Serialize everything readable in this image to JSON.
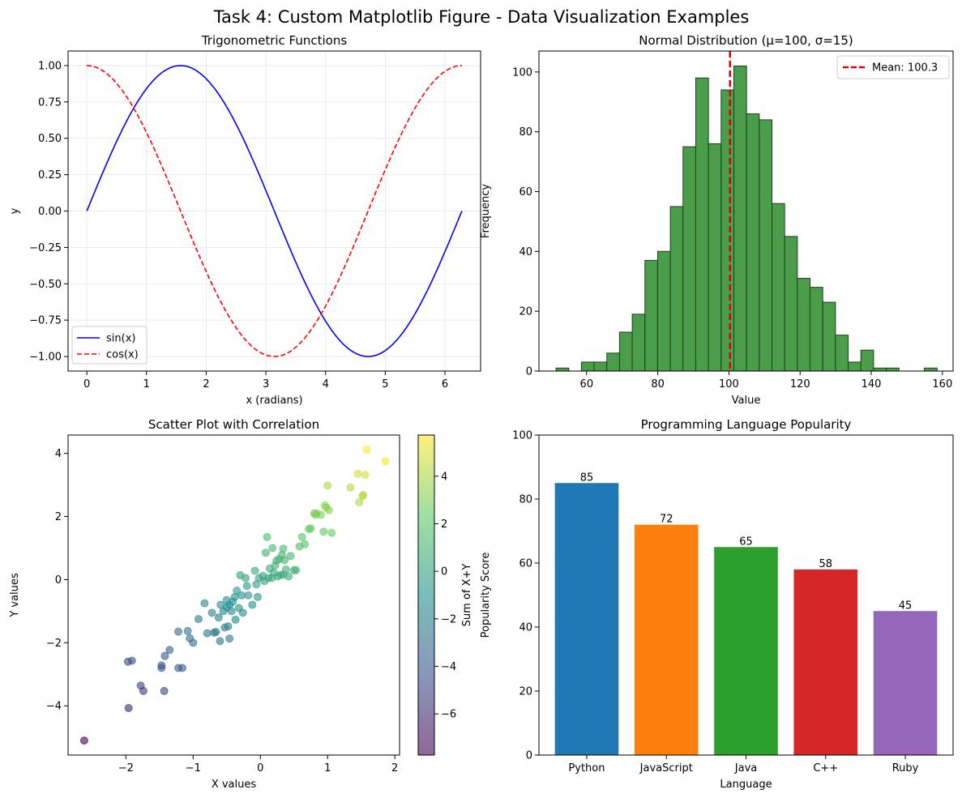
{
  "figure": {
    "suptitle": "Task 4: Custom Matplotlib Figure - Data Visualization Examples"
  },
  "chart_data": [
    {
      "id": "trig",
      "type": "line",
      "title": "Trigonometric Functions",
      "xlabel": "x (radians)",
      "ylabel": "y",
      "xlim": [
        -0.314,
        6.597
      ],
      "ylim": [
        -1.1,
        1.1
      ],
      "xticks": [
        0,
        1,
        2,
        3,
        4,
        5,
        6
      ],
      "yticks": [
        -1.0,
        -0.75,
        -0.5,
        -0.25,
        0.0,
        0.25,
        0.5,
        0.75,
        1.0
      ],
      "ytick_labels": [
        "−1.00",
        "−0.75",
        "−0.50",
        "−0.25",
        "0.00",
        "0.25",
        "0.50",
        "0.75",
        "1.00"
      ],
      "grid": true,
      "legend": "lower left",
      "x_range": [
        0,
        6.2832
      ],
      "series": [
        {
          "name": "sin(x)",
          "function": "sin",
          "color": "#0000ff",
          "style": "solid"
        },
        {
          "name": "cos(x)",
          "function": "cos",
          "color": "#ff0000",
          "style": "dashed"
        }
      ]
    },
    {
      "id": "hist",
      "type": "bar",
      "title": "Normal Distribution (μ=100, σ=15)",
      "xlabel": "Value",
      "ylabel": "Frequency",
      "xlim": [
        46.6,
        163.0
      ],
      "ylim": [
        0,
        107
      ],
      "xticks": [
        60,
        80,
        100,
        120,
        140,
        160
      ],
      "yticks": [
        0,
        20,
        40,
        60,
        80,
        100
      ],
      "bin_start": 51.4,
      "bin_width": 3.57,
      "counts": [
        1,
        0,
        3,
        3,
        6,
        13,
        19,
        37,
        40,
        55,
        75,
        98,
        76,
        94,
        102,
        86,
        84,
        56,
        45,
        31,
        28,
        23,
        12,
        3,
        7,
        1,
        1,
        0,
        0,
        1
      ],
      "color": "#4a9e4a",
      "edge_color": "#1f3d1f",
      "mean": 100.3,
      "mean_label": "Mean: 100.3",
      "mean_color": "#e00000",
      "legend": "upper right"
    },
    {
      "id": "scatter",
      "type": "scatter",
      "title": "Scatter Plot with Correlation",
      "xlabel": "X values",
      "ylabel": "Y values",
      "xlim": [
        -2.86,
        2.07
      ],
      "ylim": [
        -5.56,
        4.58
      ],
      "xticks": [
        -2,
        -1,
        0,
        1,
        2
      ],
      "yticks": [
        -4,
        -2,
        0,
        2,
        4
      ],
      "ytick_labels": [
        "−4",
        "−2",
        "0",
        "2",
        "4"
      ],
      "xtick_labels": [
        "−2",
        "−1",
        "0",
        "1",
        "2"
      ],
      "colorbar": {
        "label": "Sum of X+Y",
        "range": [
          -7.73,
          5.73
        ],
        "ticks": [
          -6,
          -4,
          -2,
          0,
          2,
          4
        ],
        "tick_labels": [
          "−6",
          "−4",
          "−2",
          "0",
          "2",
          "4"
        ]
      },
      "points": [
        [
          -2.62,
          -5.1
        ],
        [
          -1.96,
          -4.07
        ],
        [
          -1.97,
          -2.6
        ],
        [
          -1.91,
          -2.57
        ],
        [
          -1.78,
          -3.36
        ],
        [
          -1.74,
          -3.53
        ],
        [
          -1.43,
          -3.53
        ],
        [
          -1.42,
          -2.42
        ],
        [
          -1.47,
          -2.8
        ],
        [
          -1.47,
          -2.72
        ],
        [
          -1.35,
          -2.23
        ],
        [
          -1.22,
          -2.8
        ],
        [
          -1.16,
          -2.8
        ],
        [
          -1.22,
          -1.65
        ],
        [
          -1.08,
          -1.63
        ],
        [
          -1.05,
          -1.86
        ],
        [
          -1.0,
          -2.0
        ],
        [
          -0.92,
          -1.25
        ],
        [
          -0.83,
          -0.75
        ],
        [
          -0.79,
          -1.7
        ],
        [
          -0.72,
          -1.05
        ],
        [
          -0.69,
          -1.68
        ],
        [
          -0.66,
          -1.66
        ],
        [
          -0.62,
          -1.2
        ],
        [
          -0.6,
          -1.95
        ],
        [
          -0.59,
          -0.8
        ],
        [
          -0.55,
          -1.0
        ],
        [
          -0.53,
          -1.52
        ],
        [
          -0.5,
          -0.65
        ],
        [
          -0.5,
          -0.88
        ],
        [
          -0.48,
          -1.48
        ],
        [
          -0.46,
          -1.87
        ],
        [
          -0.46,
          -0.8
        ],
        [
          -0.43,
          -1.0
        ],
        [
          -0.41,
          -0.7
        ],
        [
          -0.38,
          -0.55
        ],
        [
          -0.37,
          -1.27
        ],
        [
          -0.35,
          -0.35
        ],
        [
          -0.32,
          -0.9
        ],
        [
          -0.3,
          0.14
        ],
        [
          -0.28,
          -0.5
        ],
        [
          -0.26,
          -1.05
        ],
        [
          -0.22,
          0.05
        ],
        [
          -0.2,
          -0.2
        ],
        [
          -0.18,
          -0.5
        ],
        [
          -0.12,
          -0.8
        ],
        [
          -0.08,
          0.28
        ],
        [
          -0.06,
          -0.15
        ],
        [
          -0.04,
          -0.55
        ],
        [
          -0.02,
          0.05
        ],
        [
          0.04,
          0.12
        ],
        [
          0.06,
          -0.05
        ],
        [
          0.08,
          0.85
        ],
        [
          0.1,
          1.35
        ],
        [
          0.12,
          0.05
        ],
        [
          0.14,
          0.35
        ],
        [
          0.17,
          0.05
        ],
        [
          0.18,
          1.0
        ],
        [
          0.2,
          0.22
        ],
        [
          0.22,
          0.45
        ],
        [
          0.24,
          0.6
        ],
        [
          0.26,
          0.1
        ],
        [
          0.28,
          0.65
        ],
        [
          0.3,
          0.15
        ],
        [
          0.32,
          0.78
        ],
        [
          0.34,
          0.98
        ],
        [
          0.34,
          0.15
        ],
        [
          0.36,
          0.62
        ],
        [
          0.38,
          0.32
        ],
        [
          0.42,
          0.1
        ],
        [
          0.45,
          0.75
        ],
        [
          0.5,
          0.3
        ],
        [
          0.53,
          0.3
        ],
        [
          0.58,
          1.05
        ],
        [
          0.62,
          1.35
        ],
        [
          0.66,
          1.12
        ],
        [
          0.72,
          1.6
        ],
        [
          0.75,
          1.62
        ],
        [
          0.8,
          2.1
        ],
        [
          0.82,
          2.05
        ],
        [
          0.84,
          2.1
        ],
        [
          0.9,
          2.05
        ],
        [
          0.94,
          1.52
        ],
        [
          0.96,
          2.35
        ],
        [
          0.98,
          2.28
        ],
        [
          1.0,
          2.98
        ],
        [
          1.02,
          2.2
        ],
        [
          1.06,
          1.48
        ],
        [
          1.34,
          2.92
        ],
        [
          1.45,
          3.35
        ],
        [
          1.47,
          2.45
        ],
        [
          1.52,
          2.65
        ],
        [
          1.53,
          2.68
        ],
        [
          1.56,
          3.32
        ],
        [
          1.58,
          4.12
        ],
        [
          1.86,
          3.75
        ]
      ]
    },
    {
      "id": "langs",
      "type": "bar",
      "title": "Programming Language Popularity",
      "xlabel": "Language",
      "ylabel": "Popularity Score",
      "ylim": [
        0,
        100
      ],
      "yticks": [
        0,
        20,
        40,
        60,
        80,
        100
      ],
      "categories": [
        "Python",
        "JavaScript",
        "Java",
        "C++",
        "Ruby"
      ],
      "values": [
        85,
        72,
        65,
        58,
        45
      ],
      "colors": [
        "#1f77b4",
        "#ff7f0e",
        "#2ca02c",
        "#d62728",
        "#9467bd"
      ]
    }
  ]
}
